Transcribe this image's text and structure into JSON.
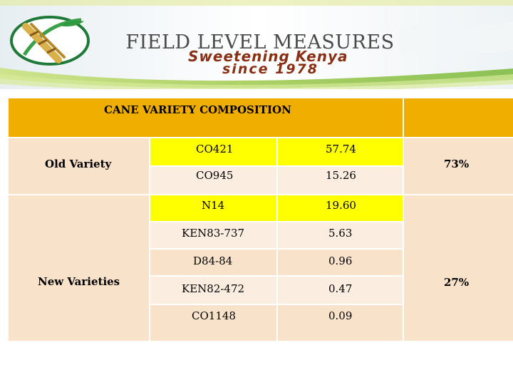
{
  "header": {
    "title": "FIELD LEVEL  MEASURES",
    "tagline_line1": "Sweetening Kenya",
    "tagline_line2": "since 1978"
  },
  "table": {
    "heading": "CANE VARIETY COMPOSITION",
    "groups": [
      {
        "label": "Old Variety",
        "share": "73%"
      },
      {
        "label": "New Varieties",
        "share": "27%"
      }
    ],
    "rows": [
      {
        "variety": "CO421",
        "value": "57.74"
      },
      {
        "variety": "CO945",
        "value": "15.26"
      },
      {
        "variety": "N14",
        "value": "19.60"
      },
      {
        "variety": "KEN83-737",
        "value": "5.63"
      },
      {
        "variety": "D84-84",
        "value": "0.96"
      },
      {
        "variety": "KEN82-472",
        "value": "0.47"
      },
      {
        "variety": "CO1148",
        "value": "0.09"
      }
    ]
  },
  "colors": {
    "header_fill": "#efae00",
    "body_fill": "#f8e2c9",
    "highlight": "#ffff00"
  }
}
